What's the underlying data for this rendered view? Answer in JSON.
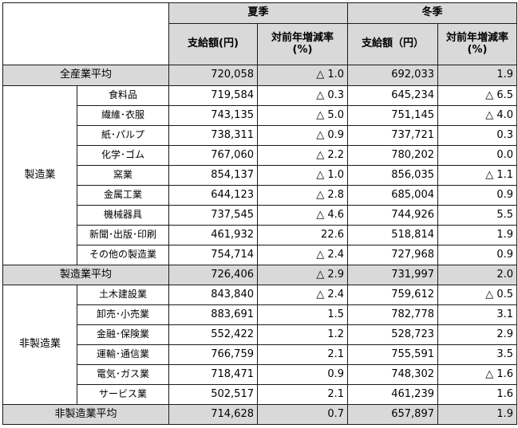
{
  "header": {
    "summer": "夏季",
    "winter": "冬季",
    "amount": "支給額(円)",
    "amount_winter": "支給額（円）",
    "rate": "対前年増減率\n(%)"
  },
  "all_average": {
    "label": "全産業平均",
    "summer_amount": "720,058",
    "summer_rate": "△ 1.0",
    "winter_amount": "692,033",
    "winter_rate": "1.9"
  },
  "manufacturing": {
    "group": "製造業",
    "rows": [
      {
        "label": "食料品",
        "summer_amount": "719,584",
        "summer_rate": "△ 0.3",
        "winter_amount": "645,234",
        "winter_rate": "△ 6.5"
      },
      {
        "label": "繊維･衣服",
        "summer_amount": "743,135",
        "summer_rate": "△ 5.0",
        "winter_amount": "751,145",
        "winter_rate": "△ 4.0"
      },
      {
        "label": "紙･パルプ",
        "summer_amount": "738,311",
        "summer_rate": "△ 0.9",
        "winter_amount": "737,721",
        "winter_rate": "0.3"
      },
      {
        "label": "化学･ゴム",
        "summer_amount": "767,060",
        "summer_rate": "△ 2.2",
        "winter_amount": "780,202",
        "winter_rate": "0.0"
      },
      {
        "label": "窯業",
        "summer_amount": "854,137",
        "summer_rate": "△ 1.0",
        "winter_amount": "856,035",
        "winter_rate": "△ 1.1"
      },
      {
        "label": "金属工業",
        "summer_amount": "644,123",
        "summer_rate": "△ 2.8",
        "winter_amount": "685,004",
        "winter_rate": "0.9"
      },
      {
        "label": "機械器具",
        "summer_amount": "737,545",
        "summer_rate": "△ 4.6",
        "winter_amount": "744,926",
        "winter_rate": "5.5"
      },
      {
        "label": "新聞･出版･印刷",
        "summer_amount": "461,932",
        "summer_rate": "22.6",
        "winter_amount": "518,814",
        "winter_rate": "1.9"
      },
      {
        "label": "その他の製造業",
        "summer_amount": "754,714",
        "summer_rate": "△ 2.4",
        "winter_amount": "727,968",
        "winter_rate": "0.9"
      }
    ],
    "average": {
      "label": "製造業平均",
      "summer_amount": "726,406",
      "summer_rate": "△ 2.9",
      "winter_amount": "731,997",
      "winter_rate": "2.0"
    }
  },
  "non_manufacturing": {
    "group": "非製造業",
    "rows": [
      {
        "label": "土木建設業",
        "summer_amount": "843,840",
        "summer_rate": "△ 2.4",
        "winter_amount": "759,612",
        "winter_rate": "△ 0.5"
      },
      {
        "label": "卸売･小売業",
        "summer_amount": "883,691",
        "summer_rate": "1.5",
        "winter_amount": "782,778",
        "winter_rate": "3.1"
      },
      {
        "label": "金融･保険業",
        "summer_amount": "552,422",
        "summer_rate": "1.2",
        "winter_amount": "528,723",
        "winter_rate": "2.9"
      },
      {
        "label": "運輸･通信業",
        "summer_amount": "766,759",
        "summer_rate": "2.1",
        "winter_amount": "755,591",
        "winter_rate": "3.5"
      },
      {
        "label": "電気･ガス業",
        "summer_amount": "718,471",
        "summer_rate": "0.9",
        "winter_amount": "748,302",
        "winter_rate": "△ 1.6"
      },
      {
        "label": "サービス業",
        "summer_amount": "502,517",
        "summer_rate": "2.1",
        "winter_amount": "461,239",
        "winter_rate": "1.6"
      }
    ],
    "average": {
      "label": "非製造業平均",
      "summer_amount": "714,628",
      "summer_rate": "0.7",
      "winter_amount": "657,897",
      "winter_rate": "1.9"
    }
  }
}
